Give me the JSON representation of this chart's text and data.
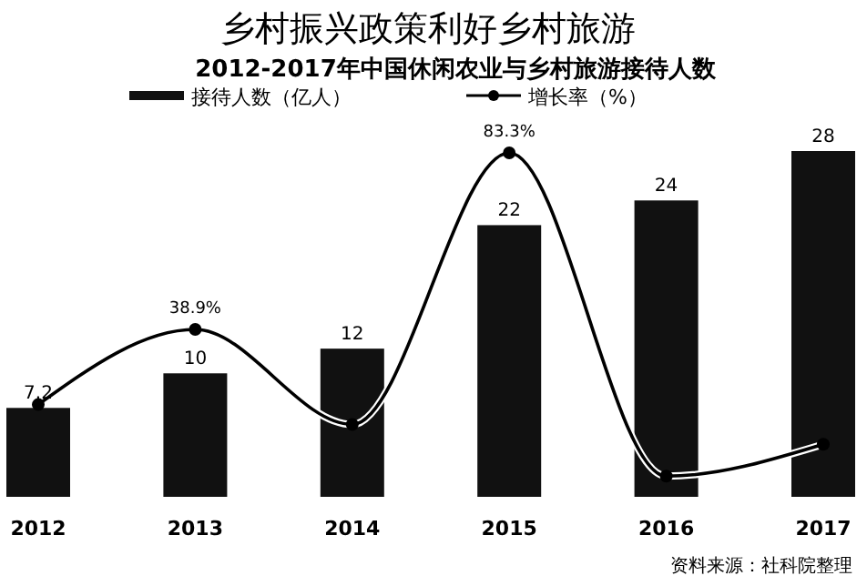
{
  "chart_data": {
    "type": "bar",
    "title": "乡村振兴政策利好乡村旅游",
    "subtitle": "2012-2017年中国休闲农业与乡村旅游接待人数",
    "categories": [
      "2012",
      "2013",
      "2014",
      "2015",
      "2016",
      "2017"
    ],
    "series": [
      {
        "name": "接待人数（亿人）",
        "color": "#111111",
        "values": [
          7.2,
          10,
          12,
          22,
          24,
          28
        ]
      },
      {
        "name": "增长率（%）",
        "type": "line",
        "axis": "y2",
        "color": "#000000",
        "marker": "circle",
        "values": [
          20,
          38.9,
          15,
          83.3,
          2,
          10
        ],
        "value_labels": [
          null,
          "38.9%",
          null,
          "83.3%",
          null,
          null
        ]
      }
    ],
    "data_labels": true,
    "tick_labels": "x",
    "legend": "top",
    "grid": false,
    "annotations": [
      "资料来源：社科院整理"
    ]
  }
}
